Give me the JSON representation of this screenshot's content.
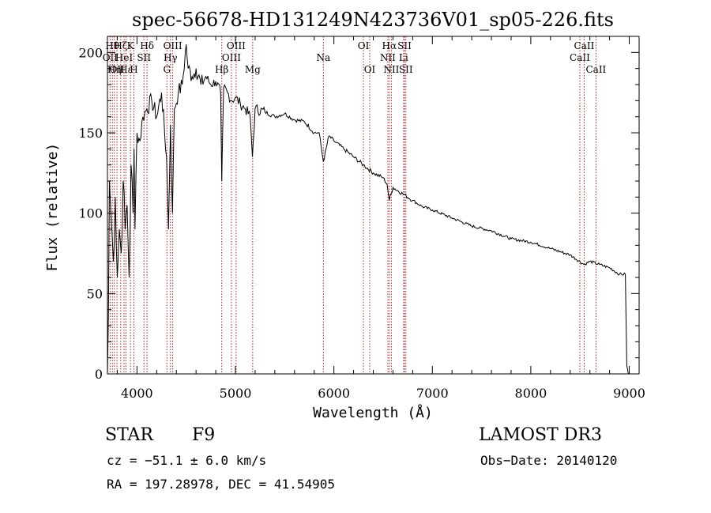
{
  "chart_data": {
    "type": "line",
    "title": "spec-56678-HD131249N423736V01_sp05-226.fits",
    "xlabel": "Wavelength (Å)",
    "ylabel": "Flux (relative)",
    "xlim": [
      3700,
      9100
    ],
    "ylim": [
      0,
      210
    ],
    "xticks": [
      4000,
      5000,
      6000,
      7000,
      8000,
      9000
    ],
    "yticks": [
      0,
      50,
      100,
      150,
      200
    ],
    "grid": false,
    "legend": "none",
    "line_color": "#000000",
    "marker_color": "#b22222",
    "series": [
      {
        "x": [
          3700,
          3710,
          3720,
          3740,
          3760,
          3780,
          3800,
          3820,
          3840,
          3860,
          3880,
          3900,
          3920,
          3940,
          3960,
          3970,
          3980,
          4000,
          4030,
          4060,
          4100,
          4150,
          4200,
          4250,
          4300,
          4320,
          4340,
          4360,
          4380,
          4420,
          4460,
          4500,
          4520,
          4560,
          4600,
          4650,
          4700,
          4750,
          4800,
          4850,
          4861,
          4880,
          4920,
          4960,
          5000,
          5050,
          5100,
          5150,
          5172,
          5200,
          5300,
          5400,
          5500,
          5600,
          5700,
          5800,
          5850,
          5893,
          5950,
          6000,
          6100,
          6200,
          6300,
          6400,
          6500,
          6540,
          6563,
          6600,
          6700,
          6800,
          6900,
          7000,
          7200,
          7400,
          7600,
          7800,
          8000,
          8200,
          8400,
          8542,
          8600,
          8700,
          8800,
          8900,
          8960,
          8975,
          8990
        ],
        "y": [
          0,
          35,
          120,
          95,
          70,
          110,
          60,
          90,
          75,
          120,
          90,
          105,
          60,
          130,
          100,
          140,
          90,
          150,
          145,
          160,
          165,
          170,
          160,
          175,
          135,
          90,
          155,
          100,
          165,
          175,
          180,
          205,
          190,
          185,
          190,
          180,
          185,
          180,
          182,
          175,
          120,
          178,
          175,
          170,
          172,
          168,
          165,
          160,
          135,
          165,
          163,
          160,
          162,
          158,
          157,
          150,
          150,
          132,
          148,
          145,
          140,
          135,
          130,
          125,
          122,
          118,
          108,
          116,
          112,
          108,
          104,
          102,
          97,
          92,
          89,
          84,
          82,
          78,
          74,
          68,
          70,
          68,
          66,
          62,
          62,
          5,
          0
        ]
      }
    ],
    "lines": [
      {
        "x": 3727,
        "label": "OII",
        "row": 1
      },
      {
        "x": 3750,
        "label": "Hθ",
        "row": 0
      },
      {
        "x": 3770,
        "label": "Hη",
        "row": 2
      },
      {
        "x": 3797,
        "label": "OII",
        "row": 2
      },
      {
        "x": 3835,
        "label": "Hζ",
        "row": 0
      },
      {
        "x": 3869,
        "label": "HeI",
        "row": 1
      },
      {
        "x": 3889,
        "label": "Hε",
        "row": 2
      },
      {
        "x": 3934,
        "label": "K",
        "row": 0
      },
      {
        "x": 3969,
        "label": "H",
        "row": 2
      },
      {
        "x": 4071,
        "label": "SII",
        "row": 1
      },
      {
        "x": 4102,
        "label": "Hδ",
        "row": 0
      },
      {
        "x": 4304,
        "label": "G",
        "row": 2
      },
      {
        "x": 4340,
        "label": "Hγ",
        "row": 1
      },
      {
        "x": 4363,
        "label": "OIII",
        "row": 0
      },
      {
        "x": 4861,
        "label": "Hβ",
        "row": 2
      },
      {
        "x": 4959,
        "label": "OIII",
        "row": 1
      },
      {
        "x": 5007,
        "label": "OIII",
        "row": 0
      },
      {
        "x": 5175,
        "label": "Mg",
        "row": 2
      },
      {
        "x": 5893,
        "label": "Na",
        "row": 1
      },
      {
        "x": 6300,
        "label": "OI",
        "row": 0
      },
      {
        "x": 6364,
        "label": "OI",
        "row": 2
      },
      {
        "x": 6548,
        "label": "NII",
        "row": 1
      },
      {
        "x": 6563,
        "label": "Hα",
        "row": 0
      },
      {
        "x": 6584,
        "label": "NII",
        "row": 2
      },
      {
        "x": 6708,
        "label": "Li",
        "row": 1
      },
      {
        "x": 6717,
        "label": "SII",
        "row": 0
      },
      {
        "x": 6731,
        "label": "SII",
        "row": 2
      },
      {
        "x": 8498,
        "label": "CaII",
        "row": 1
      },
      {
        "x": 8542,
        "label": "CaII",
        "row": 0
      },
      {
        "x": 8662,
        "label": "CaII",
        "row": 2
      }
    ]
  },
  "info": {
    "object_class": "STAR",
    "subclass": "F9",
    "survey": "LAMOST DR3",
    "cz": "cz = −51.1 ± 6.0 km/s",
    "obs_date": "Obs−Date: 20140120",
    "coords": "RA = 197.28978, DEC =  41.54905"
  }
}
